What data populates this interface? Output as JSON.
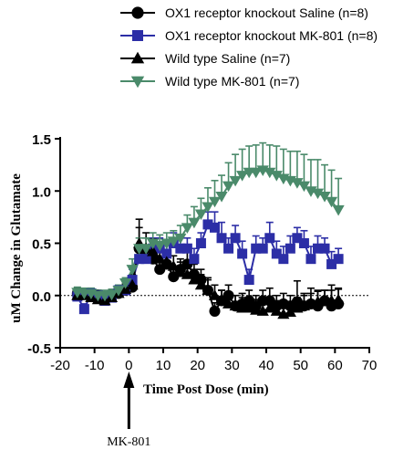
{
  "chart_data": {
    "type": "line",
    "xlabel": "Time  Post Dose (min)",
    "ylabel": "uM Change in  Glutamate",
    "xlim": [
      -20,
      70
    ],
    "ylim": [
      -0.5,
      1.5
    ],
    "x_ticks": [
      "-20",
      "-10",
      "0",
      "10",
      "20",
      "30",
      "40",
      "50",
      "60",
      "70"
    ],
    "y_ticks": [
      "-0.5",
      "0.0",
      "0.5",
      "1.0",
      "1.5"
    ],
    "reference_line": {
      "y": 0,
      "style": "dotted"
    },
    "legend_position": "top",
    "annotation": {
      "text": "MK-801",
      "x": 0,
      "style": "arrow pointing up to x axis"
    },
    "series": [
      {
        "name": "OX1 receptor knockout Saline (n=8)",
        "color": "#000000",
        "marker": "circle",
        "x": [
          -15,
          -13,
          -11,
          -9,
          -7,
          -5,
          -3,
          -1,
          1,
          3,
          5,
          7,
          9,
          11,
          13,
          15,
          17,
          19,
          21,
          23,
          25,
          27,
          29,
          31,
          33,
          35,
          37,
          39,
          41,
          43,
          45,
          47,
          49,
          51,
          53,
          55,
          57,
          59,
          61
        ],
        "y": [
          0.02,
          0.01,
          0.0,
          0.0,
          -0.02,
          0.0,
          0.02,
          0.05,
          0.08,
          0.45,
          0.4,
          0.35,
          0.25,
          0.3,
          0.18,
          0.25,
          0.3,
          0.2,
          0.15,
          0.05,
          -0.15,
          -0.05,
          0.0,
          -0.1,
          -0.08,
          -0.05,
          -0.1,
          -0.05,
          -0.05,
          -0.1,
          -0.08,
          -0.1,
          -0.06,
          -0.1,
          -0.08,
          -0.1,
          -0.05,
          -0.1,
          -0.08
        ],
        "error": [
          0.05,
          0.05,
          0.05,
          0.05,
          0.05,
          0.05,
          0.05,
          0.05,
          0.1,
          0.28,
          0.15,
          0.1,
          0.1,
          0.1,
          0.1,
          0.1,
          0.12,
          0.1,
          0.1,
          0.12,
          0.08,
          0.1,
          0.1,
          0.1,
          0.1,
          0.1,
          0.1,
          0.1,
          0.12,
          0.1,
          0.1,
          0.1,
          0.2,
          0.12,
          0.15,
          0.15,
          0.1,
          0.2,
          0.15
        ]
      },
      {
        "name": "OX1 receptor knockout MK-801 (n=8)",
        "color": "#2c2ea6",
        "marker": "square",
        "x": [
          -15,
          -13,
          -11,
          -9,
          -7,
          -5,
          -3,
          -1,
          1,
          3,
          5,
          7,
          9,
          11,
          13,
          15,
          17,
          19,
          21,
          23,
          25,
          27,
          29,
          31,
          33,
          35,
          37,
          39,
          41,
          43,
          45,
          47,
          49,
          51,
          53,
          55,
          57,
          59,
          61
        ],
        "y": [
          -0.01,
          -0.13,
          0.02,
          0.0,
          -0.05,
          -0.02,
          0.05,
          0.05,
          0.15,
          0.35,
          0.35,
          0.45,
          0.45,
          0.4,
          0.5,
          0.45,
          0.45,
          0.35,
          0.5,
          0.68,
          0.65,
          0.55,
          0.45,
          0.55,
          0.4,
          0.15,
          0.45,
          0.45,
          0.55,
          0.4,
          0.35,
          0.45,
          0.55,
          0.5,
          0.35,
          0.45,
          0.45,
          0.3,
          0.35
        ],
        "error": [
          0.05,
          0.05,
          0.05,
          0.05,
          0.05,
          0.05,
          0.05,
          0.05,
          0.1,
          0.12,
          0.1,
          0.1,
          0.1,
          0.1,
          0.1,
          0.1,
          0.1,
          0.1,
          0.1,
          0.12,
          0.15,
          0.15,
          0.1,
          0.12,
          0.12,
          0.1,
          0.12,
          0.1,
          0.15,
          0.12,
          0.12,
          0.12,
          0.1,
          0.12,
          0.12,
          0.12,
          0.1,
          0.12,
          0.1
        ]
      },
      {
        "name": "Wild type Saline (n=7)",
        "color": "#000000",
        "marker": "triangle-up",
        "x": [
          -15,
          -13,
          -11,
          -9,
          -7,
          -5,
          -3,
          -1,
          1,
          3,
          5,
          7,
          9,
          11,
          13,
          15,
          17,
          19,
          21,
          23,
          25,
          27,
          29,
          31,
          33,
          35,
          37,
          39,
          41,
          43,
          45,
          47,
          49,
          51,
          53,
          55,
          57,
          59,
          61
        ],
        "y": [
          0.0,
          0.0,
          -0.02,
          -0.04,
          -0.05,
          -0.02,
          0.02,
          0.06,
          0.1,
          0.5,
          0.45,
          0.42,
          0.35,
          0.32,
          0.28,
          0.22,
          0.2,
          0.15,
          0.1,
          0.05,
          0.0,
          -0.05,
          -0.08,
          -0.1,
          -0.12,
          -0.12,
          -0.14,
          -0.15,
          -0.12,
          -0.15,
          -0.18,
          -0.16,
          -0.12,
          -0.1,
          -0.08,
          -0.06,
          -0.05,
          -0.05,
          -0.04
        ],
        "error": [
          0.05,
          0.05,
          0.05,
          0.05,
          0.05,
          0.05,
          0.05,
          0.05,
          0.1,
          0.15,
          0.15,
          0.12,
          0.12,
          0.1,
          0.1,
          0.1,
          0.1,
          0.1,
          0.1,
          0.1,
          0.1,
          0.1,
          0.1,
          0.1,
          0.1,
          0.1,
          0.1,
          0.1,
          0.1,
          0.1,
          0.1,
          0.1,
          0.1,
          0.1,
          0.1,
          0.1,
          0.1,
          0.1,
          0.1
        ]
      },
      {
        "name": "Wild type MK-801 (n=7)",
        "color": "#4a8a6a",
        "marker": "triangle-down",
        "x": [
          -15,
          -13,
          -11,
          -9,
          -7,
          -5,
          -3,
          -1,
          1,
          3,
          5,
          7,
          9,
          11,
          13,
          15,
          17,
          19,
          21,
          23,
          25,
          27,
          29,
          31,
          33,
          35,
          37,
          39,
          41,
          43,
          45,
          47,
          49,
          51,
          53,
          55,
          57,
          59,
          61
        ],
        "y": [
          0.03,
          0.02,
          0.02,
          0.0,
          0.0,
          0.01,
          0.05,
          0.12,
          0.25,
          0.45,
          0.45,
          0.5,
          0.48,
          0.5,
          0.52,
          0.55,
          0.65,
          0.7,
          0.78,
          0.85,
          0.9,
          0.95,
          1.05,
          1.1,
          1.15,
          1.18,
          1.18,
          1.2,
          1.18,
          1.15,
          1.12,
          1.1,
          1.08,
          1.05,
          1.0,
          0.98,
          0.95,
          0.9,
          0.82
        ],
        "error": [
          0.05,
          0.05,
          0.05,
          0.05,
          0.05,
          0.05,
          0.05,
          0.05,
          0.1,
          0.1,
          0.1,
          0.1,
          0.1,
          0.1,
          0.1,
          0.12,
          0.12,
          0.15,
          0.15,
          0.18,
          0.2,
          0.2,
          0.22,
          0.25,
          0.25,
          0.25,
          0.26,
          0.26,
          0.26,
          0.28,
          0.28,
          0.28,
          0.3,
          0.3,
          0.3,
          0.32,
          0.3,
          0.3,
          0.3
        ]
      }
    ]
  }
}
